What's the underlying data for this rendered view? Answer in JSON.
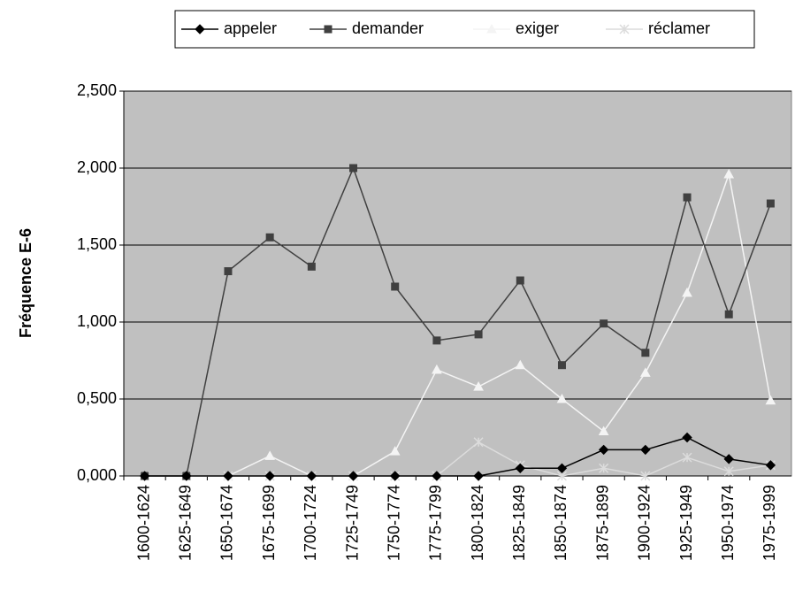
{
  "chart_data": {
    "type": "line",
    "ylabel": "Fréquence E-6",
    "categories": [
      "1600-1624",
      "1625-1649",
      "1650-1674",
      "1675-1699",
      "1700-1724",
      "1725-1749",
      "1750-1774",
      "1775-1799",
      "1800-1824",
      "1825-1849",
      "1850-1874",
      "1875-1899",
      "1900-1924",
      "1925-1949",
      "1950-1974",
      "1975-1999"
    ],
    "series": [
      {
        "name": "appeler",
        "color": "#000000",
        "marker": "diamond",
        "values": [
          0,
          0,
          0,
          0,
          0,
          0,
          0,
          0,
          0,
          0.05,
          0.05,
          0.17,
          0.17,
          0.25,
          0.11,
          0.07
        ]
      },
      {
        "name": "demander",
        "color": "#404040",
        "marker": "square",
        "values": [
          0,
          0,
          1.33,
          1.55,
          1.36,
          2.0,
          1.23,
          0.88,
          0.92,
          1.27,
          0.72,
          0.99,
          0.8,
          1.81,
          1.05,
          1.77
        ]
      },
      {
        "name": "exiger",
        "color": "#f4f4f4",
        "marker": "triangle",
        "values": [
          0,
          0,
          0,
          0.13,
          0,
          0,
          0.16,
          0.69,
          0.58,
          0.72,
          0.5,
          0.29,
          0.67,
          1.19,
          1.96,
          0.49
        ]
      },
      {
        "name": "réclamer",
        "color": "#dcdcdc",
        "marker": "x",
        "values": [
          0,
          0,
          0,
          0,
          0,
          0,
          0,
          0,
          0.22,
          0.07,
          0,
          0.05,
          0,
          0.12,
          0.03,
          0.07
        ]
      }
    ],
    "ylim": [
      0,
      2.5
    ],
    "yticks": [
      {
        "value": 0,
        "label": "0,000"
      },
      {
        "value": 0.5,
        "label": "0,500"
      },
      {
        "value": 1,
        "label": "1,000"
      },
      {
        "value": 1.5,
        "label": "1,500"
      },
      {
        "value": 2,
        "label": "2,000"
      },
      {
        "value": 2.5,
        "label": "2,500"
      }
    ],
    "grid": true,
    "plot_background": "#c0c0c0",
    "legend": "top"
  }
}
